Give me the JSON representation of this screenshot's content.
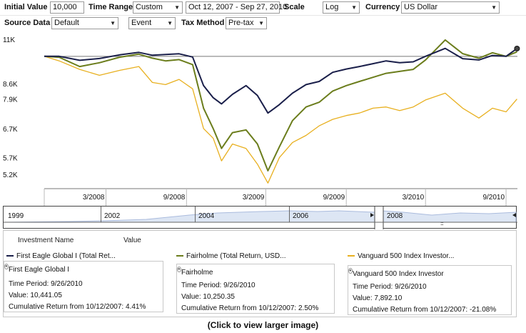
{
  "controls": {
    "initial_value_label": "Initial Value",
    "initial_value": "10,000",
    "time_range_label": "Time Range",
    "time_range": "Custom",
    "date_range": "Oct 12, 2007 - Sep 27, 2010",
    "scale_label": "Scale",
    "scale": "Log",
    "currency_label": "Currency",
    "currency": "US Dollar",
    "source_data_label": "Source Data",
    "source_data": "Default",
    "event": "Event",
    "tax_method_label": "Tax Method",
    "tax_method": "Pre-tax"
  },
  "chart_data": {
    "type": "line",
    "scale": "log",
    "ylim": [
      4800,
      11300
    ],
    "y_ticks": [
      "11K",
      "8.6K",
      "7.9K",
      "6.7K",
      "5.7K",
      "5.2K"
    ],
    "y_tick_values": [
      11000,
      8600,
      7900,
      6700,
      5700,
      5200
    ],
    "x_ticks": [
      "3/2008",
      "9/2008",
      "3/2009",
      "9/2009",
      "3/2010",
      "9/2010"
    ],
    "x_tick_dates": [
      "2008-03-01",
      "2008-09-01",
      "2009-03-01",
      "2009-09-01",
      "2010-03-01",
      "2010-09-01"
    ],
    "x_range": [
      "2007-10-12",
      "2010-09-27"
    ],
    "baseline": 10000,
    "series": [
      {
        "name": "First Eagle Global I (Total Ret...",
        "color": "#1a1f4a",
        "x": [
          "2007-10-12",
          "2007-11-15",
          "2008-01-01",
          "2008-02-15",
          "2008-04-01",
          "2008-05-15",
          "2008-06-15",
          "2008-07-15",
          "2008-08-15",
          "2008-09-15",
          "2008-10-10",
          "2008-11-01",
          "2008-11-20",
          "2008-12-15",
          "2009-01-15",
          "2009-02-10",
          "2009-03-06",
          "2009-04-01",
          "2009-05-01",
          "2009-06-01",
          "2009-07-01",
          "2009-08-01",
          "2009-09-01",
          "2009-10-01",
          "2009-11-01",
          "2009-12-01",
          "2010-01-01",
          "2010-02-01",
          "2010-03-01",
          "2010-04-15",
          "2010-05-25",
          "2010-07-01",
          "2010-08-01",
          "2010-09-01",
          "2010-09-26"
        ],
        "values": [
          10000,
          10000,
          9780,
          9880,
          10080,
          10220,
          10060,
          10100,
          10140,
          9960,
          8500,
          7950,
          7680,
          8100,
          8500,
          8050,
          7300,
          7650,
          8150,
          8550,
          8700,
          9150,
          9320,
          9450,
          9600,
          9750,
          9650,
          9700,
          10000,
          10450,
          9870,
          9800,
          10050,
          10000,
          10441
        ]
      },
      {
        "name": "Fairholme (Total Return, USD...",
        "color": "#6b7d1c",
        "x": [
          "2007-10-12",
          "2007-11-15",
          "2008-01-01",
          "2008-02-15",
          "2008-04-01",
          "2008-05-15",
          "2008-06-15",
          "2008-07-15",
          "2008-08-15",
          "2008-09-15",
          "2008-10-10",
          "2008-11-01",
          "2008-11-20",
          "2008-12-15",
          "2009-01-15",
          "2009-02-10",
          "2009-03-06",
          "2009-04-01",
          "2009-05-01",
          "2009-06-01",
          "2009-07-01",
          "2009-08-01",
          "2009-09-01",
          "2009-10-01",
          "2009-11-01",
          "2009-12-01",
          "2010-01-01",
          "2010-02-01",
          "2010-03-01",
          "2010-04-15",
          "2010-05-25",
          "2010-07-01",
          "2010-08-01",
          "2010-09-01",
          "2010-09-26"
        ],
        "values": [
          10000,
          9950,
          9450,
          9650,
          9950,
          10120,
          9900,
          9750,
          9820,
          9550,
          7500,
          6700,
          6000,
          6550,
          6650,
          6150,
          5300,
          6050,
          7000,
          7550,
          7750,
          8250,
          8500,
          8700,
          8900,
          9100,
          9200,
          9300,
          9800,
          10950,
          10150,
          9900,
          10200,
          10000,
          10250
        ]
      },
      {
        "name": "Vanguard 500 Index Investor...",
        "color": "#e8b020",
        "x": [
          "2007-10-12",
          "2007-11-15",
          "2008-01-01",
          "2008-02-15",
          "2008-04-01",
          "2008-05-15",
          "2008-06-15",
          "2008-07-15",
          "2008-08-15",
          "2008-09-15",
          "2008-10-10",
          "2008-11-01",
          "2008-11-20",
          "2008-12-15",
          "2009-01-15",
          "2009-02-10",
          "2009-03-06",
          "2009-04-01",
          "2009-05-01",
          "2009-06-01",
          "2009-07-01",
          "2009-08-01",
          "2009-09-01",
          "2009-10-01",
          "2009-11-01",
          "2009-12-01",
          "2010-01-01",
          "2010-02-01",
          "2010-03-01",
          "2010-04-15",
          "2010-05-25",
          "2010-07-01",
          "2010-08-01",
          "2010-09-01",
          "2010-09-26"
        ],
        "values": [
          10000,
          9750,
          9300,
          9000,
          9250,
          9450,
          8650,
          8550,
          8800,
          8350,
          6700,
          6350,
          5600,
          6150,
          6000,
          5500,
          4950,
          5700,
          6200,
          6450,
          6800,
          7050,
          7200,
          7300,
          7500,
          7550,
          7400,
          7550,
          7850,
          8150,
          7500,
          7100,
          7500,
          7350,
          7892
        ]
      }
    ]
  },
  "navigator": {
    "years": [
      "1999",
      "2002",
      "2004",
      "2006",
      "2008"
    ],
    "grip": "::::"
  },
  "legend": {
    "col_investment": "Investment Name",
    "col_value": "Value",
    "series_labels": [
      "First Eagle Global I (Total Ret...",
      "Fairholme (Total Return, USD...",
      "Vanguard 500 Index Investor..."
    ],
    "cards": [
      {
        "name": "First Eagle Global I",
        "period": "Time Period: 9/26/2010",
        "value": "Value: 10,441.05",
        "cum": "Cumulative Return from 10/12/2007: 4.41%"
      },
      {
        "name": "Fairholme",
        "period": "Time Period: 9/26/2010",
        "value": "Value: 10,250.35",
        "cum": "Cumulative Return from 10/12/2007: 2.50%"
      },
      {
        "name": "Vanguard 500 Index Investor",
        "period": "Time Period: 9/26/2010",
        "value": "Value: 7,892.10",
        "cum": "Cumulative Return from 10/12/2007: -21.08%"
      }
    ]
  },
  "caption": "(Click to view larger image)"
}
